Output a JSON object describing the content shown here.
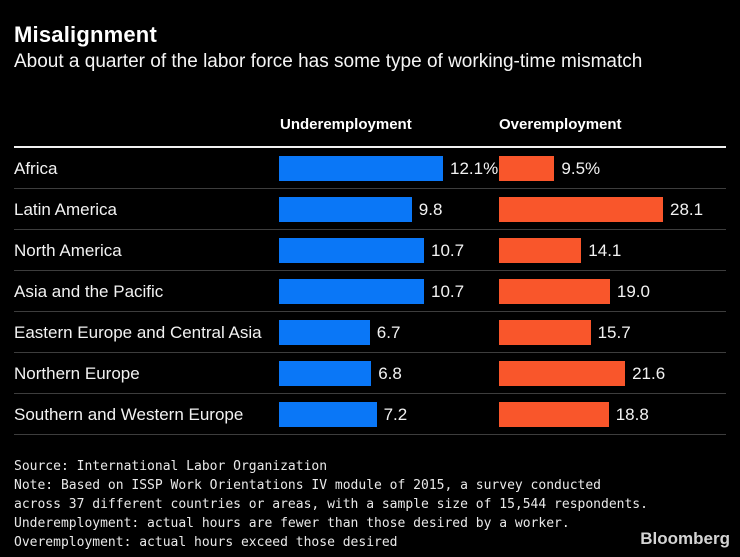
{
  "header": {
    "title": "Misalignment",
    "subtitle": "About a quarter of the labor force has some type of working-time mismatch"
  },
  "columns": {
    "underemployment": "Underemployment",
    "overemployment": "Overemployment"
  },
  "chart_data": {
    "type": "bar",
    "orientation": "horizontal",
    "title": "Misalignment",
    "subtitle": "About a quarter of the labor force has some type of working-time mismatch",
    "categories": [
      "Africa",
      "Latin America",
      "North America",
      "Asia and the Pacific",
      "Eastern Europe and Central Asia",
      "Northern Europe",
      "Southern and Western Europe"
    ],
    "series": [
      {
        "name": "Underemployment",
        "color": "#0a77f7",
        "axis_max": 12.1,
        "values": [
          12.1,
          9.8,
          10.7,
          10.7,
          6.7,
          6.8,
          7.2
        ],
        "value_labels": [
          "12.1%",
          "9.8",
          "10.7",
          "10.7",
          "6.7",
          "6.8",
          "7.2"
        ]
      },
      {
        "name": "Overemployment",
        "color": "#f9562b",
        "axis_max": 28.1,
        "values": [
          9.5,
          28.1,
          14.1,
          19.0,
          15.7,
          21.6,
          18.8
        ],
        "value_labels": [
          "9.5%",
          "28.1",
          "14.1",
          "19.0",
          "15.7",
          "21.6",
          "18.8"
        ]
      }
    ],
    "scaling": "each series scaled independently; longest bar in each column spans full column width",
    "grid": false,
    "legend_position": "column headers above bars"
  },
  "footer": {
    "lines": [
      "Source: International Labor Organization",
      "Note: Based on ISSP Work Orientations IV module of 2015, a survey conducted",
      "across 37 different countries or areas, with a sample size of 15,544 respondents.",
      "Underemployment: actual hours are fewer than those desired by a worker.",
      "Overemployment: actual hours exceed those desired"
    ]
  },
  "brand": "Bloomberg",
  "colors": {
    "background": "#000000",
    "underemployment_bar": "#0a77f7",
    "overemployment_bar": "#f9562b",
    "text": "#ffffff",
    "row_rule": "#3d3d3d",
    "header_rule": "#f0f0f0"
  }
}
